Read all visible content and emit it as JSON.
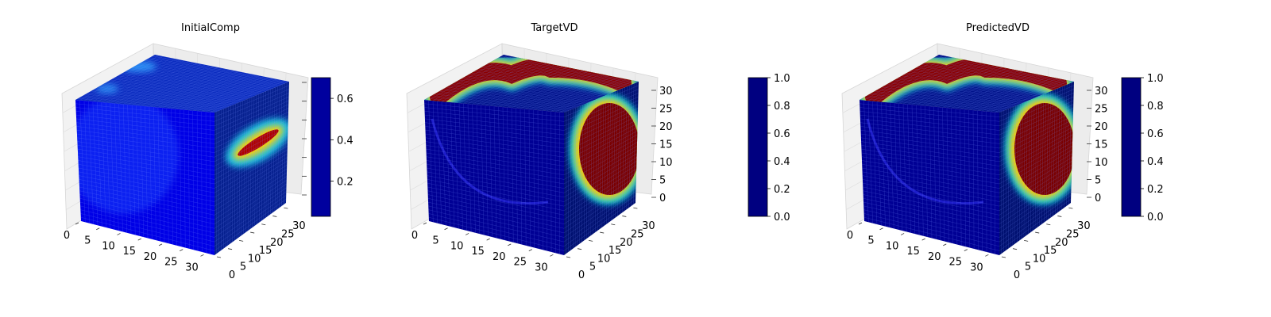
{
  "chart_data": [
    {
      "type": "heatmap",
      "chart_kind": "3d-voxel-volume",
      "title": "InitialComp",
      "x": {
        "range": [
          0,
          32
        ],
        "ticks": [
          0,
          5,
          10,
          15,
          20,
          25,
          30
        ]
      },
      "y": {
        "range": [
          0,
          32
        ],
        "ticks": [
          0,
          5,
          10,
          15,
          20,
          25,
          30
        ]
      },
      "z": {
        "range": [
          0,
          32
        ],
        "ticks": [],
        "tick_labels_shown": false
      },
      "colorbar": {
        "colormap": "jet",
        "range": [
          0.03,
          0.7
        ],
        "ticks": [
          0.2,
          0.4,
          0.6
        ]
      },
      "grid": true,
      "features": [
        {
          "face": "right",
          "shape": "tilted ellipse",
          "peak_value": 0.65
        },
        {
          "face": "top",
          "shape": "faint blobs",
          "peak_value": 0.25
        },
        {
          "face": "front",
          "shape": "faint cloud",
          "peak_value": 0.12
        },
        {
          "face": "background",
          "value": 0.05
        }
      ]
    },
    {
      "type": "heatmap",
      "chart_kind": "3d-voxel-volume",
      "title": "TargetVD",
      "x": {
        "range": [
          0,
          32
        ],
        "ticks": [
          0,
          5,
          10,
          15,
          20,
          25,
          30
        ]
      },
      "y": {
        "range": [
          0,
          32
        ],
        "ticks": [
          0,
          5,
          10,
          15,
          20,
          25,
          30
        ]
      },
      "z": {
        "range": [
          0,
          32
        ],
        "ticks": [
          0,
          5,
          10,
          15,
          20,
          25,
          30
        ]
      },
      "colorbar": {
        "colormap": "jet",
        "range": [
          0.0,
          1.0
        ],
        "ticks": [
          0.0,
          0.2,
          0.4,
          0.6,
          0.8,
          1.0
        ]
      },
      "grid": true,
      "features": [
        {
          "face": "top",
          "shape": "s-curve band",
          "peak_value": 1.0
        },
        {
          "face": "right",
          "shape": "ellipse",
          "peak_value": 1.0
        },
        {
          "face": "background",
          "value": 0.0
        }
      ]
    },
    {
      "type": "heatmap",
      "chart_kind": "3d-voxel-volume",
      "title": "PredictedVD",
      "x": {
        "range": [
          0,
          32
        ],
        "ticks": [
          0,
          5,
          10,
          15,
          20,
          25,
          30
        ]
      },
      "y": {
        "range": [
          0,
          32
        ],
        "ticks": [
          0,
          5,
          10,
          15,
          20,
          25,
          30
        ]
      },
      "z": {
        "range": [
          0,
          32
        ],
        "ticks": [
          0,
          5,
          10,
          15,
          20,
          25,
          30
        ]
      },
      "colorbar": {
        "colormap": "jet",
        "range": [
          0.0,
          1.0
        ],
        "ticks": [
          0.0,
          0.2,
          0.4,
          0.6,
          0.8,
          1.0
        ]
      },
      "grid": true,
      "features": [
        {
          "face": "top",
          "shape": "s-curve band",
          "peak_value": 1.0
        },
        {
          "face": "right",
          "shape": "ellipse",
          "peak_value": 1.0
        },
        {
          "face": "background",
          "value": 0.0
        }
      ]
    }
  ]
}
